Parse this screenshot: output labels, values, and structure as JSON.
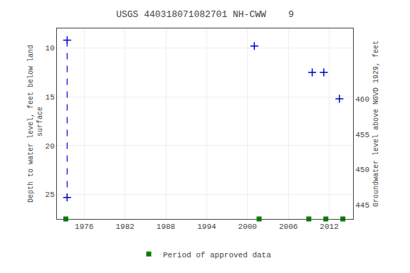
{
  "chart_data": {
    "type": "scatter",
    "title": "USGS 440318071082701 NH-CWW    9",
    "ylabel": "Depth to water level, feet below land\n surface",
    "y2label": "Groundwater level above NGVD 1929, feet",
    "xlim": [
      1972.0,
      2015.5
    ],
    "xticks": [
      1976,
      1982,
      1988,
      1994,
      2000,
      2006,
      2012
    ],
    "ylim": [
      27.5,
      8.0
    ],
    "yticks": [
      10,
      15,
      20,
      25
    ],
    "y2lim": [
      443.0,
      470.0
    ],
    "y2ticks": [
      445,
      450,
      455,
      460
    ],
    "grid": true,
    "legend": "bottom",
    "series": [
      {
        "x": [
          1973.5,
          1973.5
        ],
        "values": [
          9.2,
          25.3
        ],
        "color": "#0000cc",
        "marker": "+",
        "line_style": "dashed"
      },
      {
        "x": [
          2001.0,
          2009.5,
          2011.2,
          2013.5
        ],
        "values": [
          9.8,
          12.5,
          12.5,
          15.2
        ],
        "color": "#0000cc",
        "marker": "+"
      },
      {
        "name": "Period of approved data",
        "x": [
          1973.3,
          2001.7,
          2009.0,
          2011.5,
          2014.0
        ],
        "color": "#008000",
        "marker": "square"
      }
    ]
  }
}
